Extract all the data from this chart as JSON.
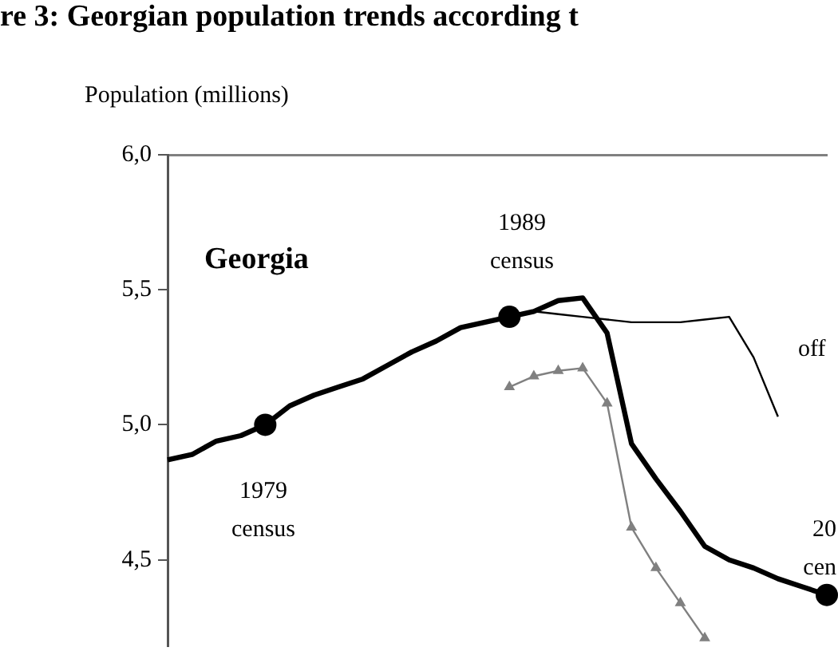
{
  "chart_data": {
    "type": "line",
    "title": "re 3: Georgian population trends according t",
    "ylabel": "Population (millions)",
    "categories": [
      null,
      null,
      null,
      null,
      null,
      null,
      null,
      null,
      null,
      null,
      null,
      null,
      null,
      null,
      null,
      null,
      null,
      null,
      null,
      null,
      null,
      null,
      null,
      null,
      null,
      null,
      null,
      null
    ],
    "series": [
      {
        "type": "line",
        "color": "#000000",
        "marker": "none",
        "line_style": "solid",
        "values": [
          4.87,
          4.89,
          4.94,
          4.96,
          5.0,
          5.07,
          5.11,
          5.14,
          5.17,
          5.22,
          5.27,
          5.31,
          5.36,
          5.38,
          5.4,
          5.42,
          5.46,
          5.47,
          5.34,
          4.93,
          4.8,
          4.68,
          4.55,
          4.5,
          4.47,
          4.43,
          4.4,
          4.37
        ]
      },
      {
        "type": "line",
        "color": "#000000",
        "marker": "none",
        "line_style": "solid",
        "values": [
          null,
          null,
          null,
          null,
          null,
          null,
          null,
          null,
          null,
          null,
          null,
          null,
          null,
          null,
          5.4,
          5.42,
          5.41,
          5.4,
          5.39,
          5.38,
          5.38,
          5.38,
          5.39,
          5.4,
          5.25,
          5.03,
          null,
          null
        ]
      },
      {
        "type": "line",
        "color": "#808080",
        "marker": "triangle",
        "line_style": "solid",
        "values": [
          null,
          null,
          null,
          null,
          null,
          null,
          null,
          null,
          null,
          null,
          null,
          null,
          null,
          null,
          5.14,
          5.18,
          5.2,
          5.21,
          5.08,
          4.62,
          4.47,
          4.34,
          4.21,
          null,
          null,
          null,
          null,
          null
        ]
      },
      {
        "type": "scatter",
        "color": "#000000",
        "marker": "circle",
        "values": [
          null,
          null,
          null,
          null,
          5.0,
          null,
          null,
          null,
          null,
          null,
          null,
          null,
          null,
          null,
          5.4,
          null,
          null,
          null,
          null,
          null,
          null,
          null,
          null,
          null,
          null,
          null,
          null,
          4.37
        ]
      }
    ],
    "ylim": [
      4.18,
      6.0
    ],
    "yticks": [
      {
        "value": 4.5,
        "label": "4,5"
      },
      {
        "value": 5.0,
        "label": "5,0"
      },
      {
        "value": 5.5,
        "label": "5,5"
      },
      {
        "value": 6.0,
        "label": "6,0"
      }
    ],
    "tick_labels": "y",
    "grid": false,
    "legend": false,
    "annotations": [
      "Georgia",
      "1989\ncensus",
      "1979\ncensus",
      "off",
      "20\ncen"
    ]
  }
}
